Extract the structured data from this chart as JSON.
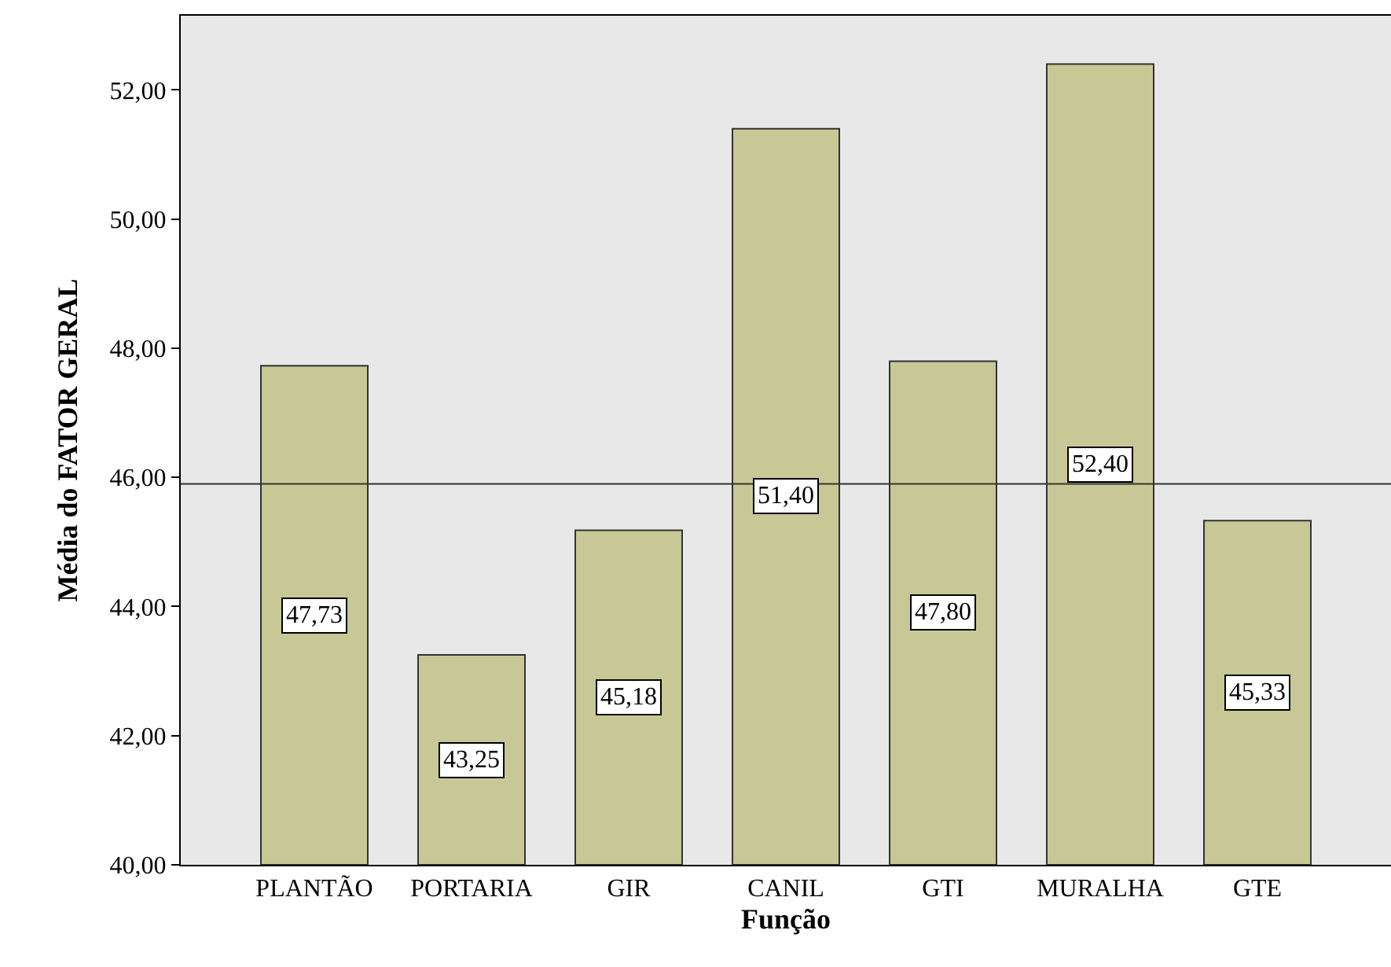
{
  "chart_data": {
    "type": "bar",
    "xlabel": "Função",
    "ylabel": "Média do FATOR GERAL",
    "categories": [
      "PLANTÃO",
      "PORTARIA",
      "GIR",
      "CANIL",
      "GTI",
      "MURALHA",
      "GTE"
    ],
    "values": [
      47.73,
      43.25,
      45.18,
      51.4,
      47.8,
      52.4,
      45.33
    ],
    "value_labels": [
      "47,73",
      "43,25",
      "45,18",
      "51,40",
      "47,80",
      "52,40",
      "45,33"
    ],
    "color": "#c8c896",
    "ylim": [
      40,
      53.15
    ],
    "yticks": [
      {
        "value": 40,
        "label": "40,00"
      },
      {
        "value": 42,
        "label": "42,00"
      },
      {
        "value": 44,
        "label": "44,00"
      },
      {
        "value": 46,
        "label": "46,00"
      },
      {
        "value": 48,
        "label": "48,00"
      },
      {
        "value": 50,
        "label": "50,00"
      },
      {
        "value": 52,
        "label": "52,00"
      }
    ],
    "ref_lines": [
      {
        "axis": "y",
        "value": 45.9,
        "color": "#333333"
      }
    ],
    "grid": false,
    "legend": false
  }
}
